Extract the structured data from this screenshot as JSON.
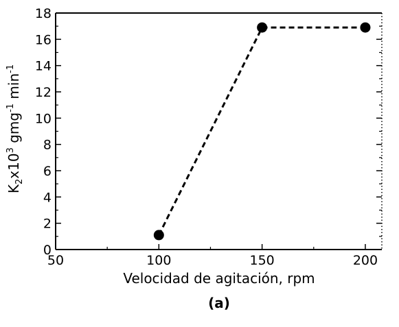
{
  "chart_data": {
    "type": "line",
    "x": [
      100,
      150,
      200
    ],
    "y": [
      1.1,
      16.9,
      16.9
    ],
    "series": [
      {
        "values": [
          1.1,
          16.9,
          16.9
        ],
        "color": "#000000",
        "line_style": "dashed",
        "marker": "circle-filled"
      }
    ],
    "xlabel": "Velocidad de agitación, rpm",
    "ylabel": {
      "prefix": "K",
      "sub": "2",
      "mid": "x10",
      "sup1": "3",
      "mid2": " gmg",
      "sup2": "-1",
      "mid3": " min",
      "sup3": "-1"
    },
    "caption": "(a)",
    "xlim": [
      50,
      208
    ],
    "ylim": [
      0,
      18
    ],
    "xticks": [
      50,
      100,
      150,
      200
    ],
    "xtick_labels": [
      "50",
      "100",
      "150",
      "200"
    ],
    "yticks": [
      0,
      2,
      4,
      6,
      8,
      10,
      12,
      14,
      16,
      18
    ],
    "ytick_labels": [
      "0",
      "2",
      "4",
      "6",
      "8",
      "10",
      "12",
      "14",
      "16",
      "18"
    ],
    "grid": false,
    "legend": "none"
  }
}
